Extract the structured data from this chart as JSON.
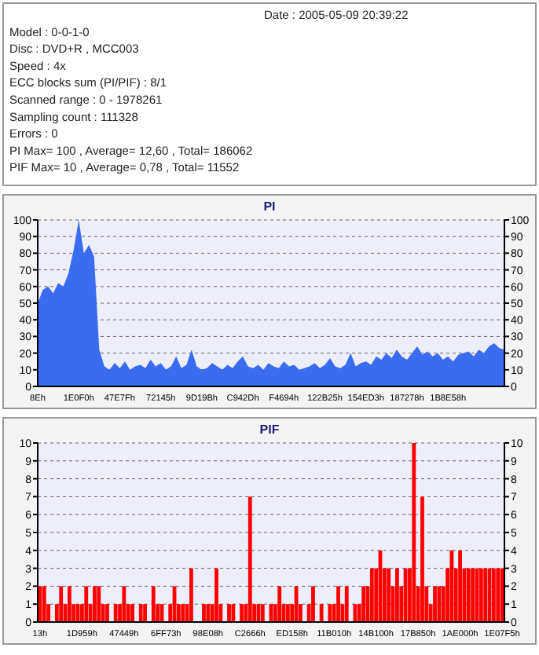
{
  "chart_data": [
    {
      "type": "other",
      "annotations": [
        "Date : 2005-05-09 20:39:22",
        "Model : 0-0-1-0",
        "Disc : DVD+R , MCC003",
        "Speed : 4x",
        "ECC blocks sum (PI/PIF) : 8/1",
        "Scanned range : 0 - 1978261",
        "Sampling count : 111328",
        "Errors : 0",
        "PI Max= 100 , Average= 12,60 , Total= 186062",
        "PIF Max= 10 , Average= 0,78 , Total= 11552"
      ]
    },
    {
      "type": "area",
      "title": "PI",
      "categories": [
        "8Eh",
        null,
        null,
        null,
        null,
        null,
        null,
        null,
        "1E0F0h",
        null,
        null,
        null,
        null,
        null,
        null,
        null,
        "47E7Fh",
        null,
        null,
        null,
        null,
        null,
        null,
        null,
        "72145h",
        null,
        null,
        null,
        null,
        null,
        null,
        null,
        "9D19Bh",
        null,
        null,
        null,
        null,
        null,
        null,
        null,
        "C942Dh",
        null,
        null,
        null,
        null,
        null,
        null,
        null,
        "F4694h",
        null,
        null,
        null,
        null,
        null,
        null,
        null,
        "122B25h",
        null,
        null,
        null,
        null,
        null,
        null,
        null,
        "154ED3h",
        null,
        null,
        null,
        null,
        null,
        null,
        null,
        "187278h",
        null,
        null,
        null,
        null,
        null,
        null,
        null,
        "1B8E58h",
        null,
        null,
        null,
        null,
        null,
        null,
        null,
        null,
        null,
        null,
        null
      ],
      "series": [
        {
          "color": "#3a6cf0",
          "values": [
            50,
            58,
            60,
            56,
            62,
            60,
            68,
            82,
            100,
            80,
            85,
            78,
            22,
            12,
            10,
            14,
            11,
            15,
            10,
            12,
            13,
            11,
            16,
            12,
            14,
            10,
            12,
            18,
            11,
            13,
            22,
            12,
            10,
            11,
            14,
            12,
            10,
            13,
            11,
            15,
            18,
            12,
            11,
            13,
            10,
            14,
            12,
            11,
            15,
            12,
            13,
            10,
            11,
            12,
            14,
            11,
            13,
            17,
            12,
            11,
            13,
            20,
            12,
            14,
            15,
            13,
            18,
            16,
            20,
            17,
            22,
            18,
            16,
            20,
            24,
            19,
            21,
            18,
            20,
            16,
            18,
            15,
            19,
            20,
            21,
            18,
            22,
            20,
            24,
            26,
            23,
            22
          ]
        }
      ],
      "ylim": [
        0,
        100
      ],
      "yticks": [
        0,
        10,
        20,
        30,
        40,
        50,
        60,
        70,
        80,
        90,
        100
      ],
      "y2lim": [
        0,
        100
      ],
      "y2ticks": [
        0,
        10,
        20,
        30,
        40,
        50,
        60,
        70,
        80,
        90,
        100
      ],
      "grid": "y",
      "line_style": "dashed"
    },
    {
      "type": "bar",
      "title": "PIF",
      "categories": [
        "13h",
        null,
        null,
        null,
        null,
        null,
        null,
        null,
        null,
        null,
        "1D959h",
        null,
        null,
        null,
        null,
        null,
        null,
        null,
        null,
        null,
        "47449h",
        null,
        null,
        null,
        null,
        null,
        null,
        null,
        null,
        null,
        "6FF73h",
        null,
        null,
        null,
        null,
        null,
        null,
        null,
        null,
        null,
        "98E08h",
        null,
        null,
        null,
        null,
        null,
        null,
        null,
        null,
        null,
        "C2666h",
        null,
        null,
        null,
        null,
        null,
        null,
        null,
        null,
        null,
        "ED158h",
        null,
        null,
        null,
        null,
        null,
        null,
        null,
        null,
        null,
        "11B010h",
        null,
        null,
        null,
        null,
        null,
        null,
        null,
        null,
        null,
        "14B100h",
        null,
        null,
        null,
        null,
        null,
        null,
        null,
        null,
        null,
        "17B850h",
        null,
        null,
        null,
        null,
        null,
        null,
        null,
        null,
        null,
        "1AE000h",
        null,
        null,
        null,
        null,
        null,
        null,
        null,
        null,
        null,
        "1E07F5h"
      ],
      "series": [
        {
          "color": "#ff0000",
          "values": [
            2,
            2,
            1,
            0,
            1,
            2,
            1,
            2,
            1,
            1,
            1,
            2,
            1,
            2,
            2,
            1,
            1,
            0,
            1,
            1,
            2,
            1,
            1,
            0,
            1,
            1,
            0,
            2,
            1,
            1,
            0,
            1,
            2,
            1,
            1,
            1,
            3,
            0,
            0,
            1,
            1,
            1,
            3,
            1,
            0,
            1,
            1,
            0,
            1,
            1,
            7,
            1,
            1,
            1,
            0,
            1,
            1,
            2,
            1,
            1,
            1,
            2,
            1,
            0,
            1,
            2,
            0,
            1,
            0,
            1,
            1,
            2,
            1,
            2,
            0,
            1,
            1,
            2,
            2,
            3,
            3,
            4,
            3,
            3,
            2,
            3,
            2,
            3,
            3,
            10,
            2,
            7,
            2,
            1,
            2,
            2,
            2,
            3,
            4,
            3,
            4,
            3,
            3,
            3,
            3,
            3,
            3,
            3,
            3,
            3,
            3
          ]
        }
      ],
      "ylim": [
        0,
        10
      ],
      "yticks": [
        0,
        1,
        2,
        3,
        4,
        5,
        6,
        7,
        8,
        9,
        10
      ],
      "y2lim": [
        0,
        10
      ],
      "y2ticks": [
        0,
        1,
        2,
        3,
        4,
        5,
        6,
        7,
        8,
        9,
        10
      ],
      "grid": "y",
      "line_style": "dashed"
    }
  ]
}
